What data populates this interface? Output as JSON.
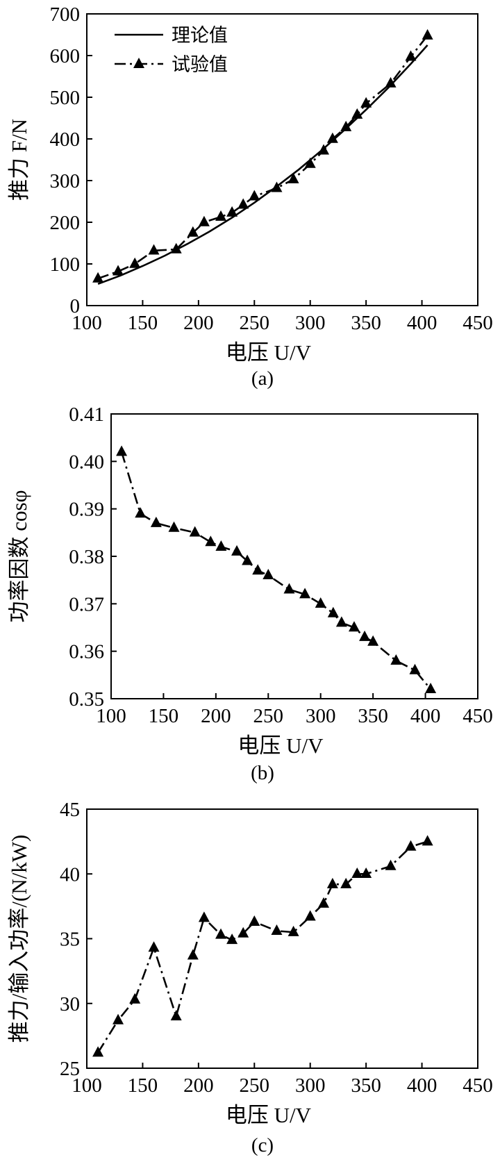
{
  "chart_data": [
    {
      "type": "line",
      "caption": "(a)",
      "xlabel": "电压 U/V",
      "ylabel": "推力 F/N",
      "xlim": [
        100,
        450
      ],
      "ylim": [
        0,
        700
      ],
      "xticks": [
        100,
        150,
        200,
        250,
        300,
        350,
        400,
        450
      ],
      "yticks": [
        0,
        100,
        200,
        300,
        400,
        500,
        600,
        700
      ],
      "legend_position": "top-left",
      "grid": false,
      "series": [
        {
          "name": "理论值",
          "style": "solid",
          "marker": "none",
          "x": [
            110,
            130,
            150,
            170,
            190,
            210,
            230,
            250,
            270,
            290,
            310,
            330,
            350,
            370,
            390,
            405
          ],
          "y": [
            52,
            72,
            95,
            120,
            148,
            178,
            211,
            247,
            286,
            327,
            372,
            420,
            470,
            523,
            580,
            625
          ]
        },
        {
          "name": "试验值",
          "style": "dashed",
          "marker": "triangle",
          "x": [
            110,
            128,
            143,
            160,
            180,
            195,
            205,
            220,
            230,
            240,
            250,
            270,
            285,
            300,
            312,
            320,
            332,
            342,
            350,
            372,
            390,
            405
          ],
          "y": [
            65,
            82,
            100,
            132,
            135,
            175,
            200,
            213,
            223,
            242,
            262,
            282,
            303,
            340,
            372,
            400,
            428,
            458,
            485,
            533,
            597,
            648
          ]
        }
      ]
    },
    {
      "type": "line",
      "caption": "(b)",
      "xlabel": "电压 U/V",
      "ylabel": "功率因数 cosφ",
      "xlim": [
        100,
        450
      ],
      "ylim": [
        0.35,
        0.41
      ],
      "xticks": [
        100,
        150,
        200,
        250,
        300,
        350,
        400,
        450
      ],
      "yticks": [
        0.35,
        0.36,
        0.37,
        0.38,
        0.39,
        0.4,
        0.41
      ],
      "grid": false,
      "series": [
        {
          "style": "dashed",
          "marker": "triangle",
          "x": [
            110,
            128,
            143,
            160,
            180,
            195,
            205,
            220,
            230,
            240,
            250,
            270,
            285,
            300,
            312,
            320,
            332,
            342,
            350,
            372,
            390,
            405
          ],
          "y": [
            0.402,
            0.389,
            0.387,
            0.386,
            0.385,
            0.383,
            0.382,
            0.381,
            0.379,
            0.377,
            0.376,
            0.373,
            0.372,
            0.37,
            0.368,
            0.366,
            0.365,
            0.363,
            0.362,
            0.358,
            0.356,
            0.352
          ]
        }
      ]
    },
    {
      "type": "line",
      "caption": "(c)",
      "xlabel": "电压 U/V",
      "ylabel": "推力/输入功率/(N/kW)",
      "xlim": [
        100,
        450
      ],
      "ylim": [
        25,
        45
      ],
      "xticks": [
        100,
        150,
        200,
        250,
        300,
        350,
        400,
        450
      ],
      "yticks": [
        25,
        30,
        35,
        40,
        45
      ],
      "grid": false,
      "series": [
        {
          "style": "dashed",
          "marker": "triangle",
          "x": [
            110,
            128,
            143,
            160,
            180,
            195,
            205,
            220,
            230,
            240,
            250,
            270,
            285,
            300,
            312,
            320,
            332,
            342,
            350,
            372,
            390,
            405
          ],
          "y": [
            26.2,
            28.7,
            30.3,
            34.3,
            29.0,
            33.7,
            36.6,
            35.3,
            34.9,
            35.4,
            36.3,
            35.6,
            35.5,
            36.7,
            37.7,
            39.2,
            39.2,
            40.0,
            40.0,
            40.6,
            42.1,
            42.5
          ]
        }
      ]
    }
  ]
}
